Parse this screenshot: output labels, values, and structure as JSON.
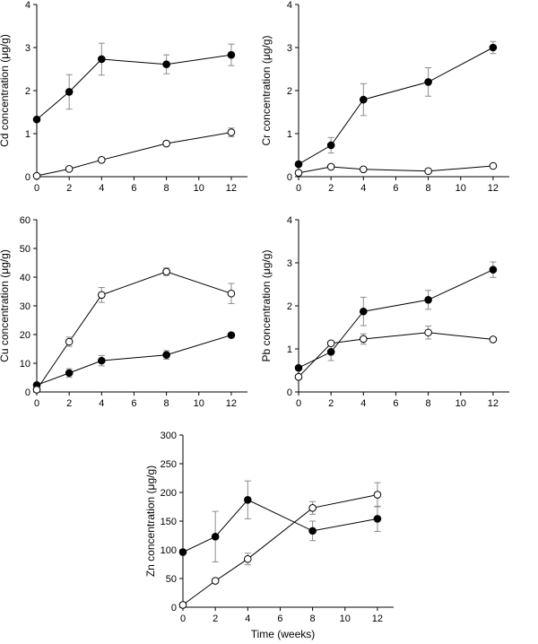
{
  "chart_data": [
    {
      "type": "line",
      "ylabel": "Cd concentration (μg/g)",
      "xlabel": "",
      "x": [
        0,
        2,
        4,
        8,
        12
      ],
      "xlim": [
        0,
        13
      ],
      "xticks": [
        "0",
        "2",
        "4",
        "6",
        "8",
        "10",
        "12"
      ],
      "ylim": [
        0,
        4
      ],
      "yticks": [
        "0",
        "1",
        "2",
        "3",
        "4"
      ],
      "series": [
        {
          "marker": "filled",
          "values": [
            1.33,
            1.97,
            2.73,
            2.61,
            2.83
          ],
          "errors": [
            0.0,
            0.4,
            0.37,
            0.22,
            0.25
          ]
        },
        {
          "marker": "open",
          "values": [
            0.02,
            0.18,
            0.39,
            0.77,
            1.03
          ],
          "errors": [
            0.0,
            0.0,
            0.0,
            0.0,
            0.1
          ]
        }
      ]
    },
    {
      "type": "line",
      "ylabel": "Cr concentration (μg/g)",
      "xlabel": "",
      "x": [
        0,
        2,
        4,
        8,
        12
      ],
      "xlim": [
        0,
        13
      ],
      "xticks": [
        "0",
        "2",
        "4",
        "6",
        "8",
        "10",
        "12"
      ],
      "ylim": [
        0,
        4
      ],
      "yticks": [
        "0",
        "1",
        "2",
        "3",
        "4"
      ],
      "series": [
        {
          "marker": "filled",
          "values": [
            0.29,
            0.73,
            1.79,
            2.2,
            3.0
          ],
          "errors": [
            0.0,
            0.18,
            0.37,
            0.33,
            0.14
          ]
        },
        {
          "marker": "open",
          "values": [
            0.09,
            0.23,
            0.17,
            0.13,
            0.25
          ],
          "errors": [
            0.0,
            0.0,
            0.0,
            0.0,
            0.0
          ]
        }
      ]
    },
    {
      "type": "line",
      "ylabel": "Cu concentration (μg/g)",
      "xlabel": "",
      "x": [
        0,
        2,
        4,
        8,
        12
      ],
      "xlim": [
        0,
        13
      ],
      "xticks": [
        "0",
        "2",
        "4",
        "6",
        "8",
        "10",
        "12"
      ],
      "ylim": [
        0,
        60
      ],
      "yticks": [
        "0",
        "10",
        "20",
        "30",
        "40",
        "50",
        "60"
      ],
      "series": [
        {
          "marker": "filled",
          "values": [
            2.4,
            6.6,
            10.9,
            12.9,
            19.8
          ],
          "errors": [
            0.0,
            1.5,
            1.8,
            1.5,
            0.0
          ]
        },
        {
          "marker": "open",
          "values": [
            0.8,
            17.5,
            33.8,
            41.9,
            34.3
          ],
          "errors": [
            0.0,
            1.6,
            2.6,
            1.3,
            3.5
          ]
        }
      ]
    },
    {
      "type": "line",
      "ylabel": "Pb concentration (μg/g)",
      "xlabel": "",
      "x": [
        0,
        2,
        4,
        8,
        12
      ],
      "xlim": [
        0,
        13
      ],
      "xticks": [
        "0",
        "2",
        "4",
        "6",
        "8",
        "10",
        "12"
      ],
      "ylim": [
        0,
        4
      ],
      "yticks": [
        "0",
        "1",
        "2",
        "3",
        "4"
      ],
      "series": [
        {
          "marker": "filled",
          "values": [
            0.56,
            0.93,
            1.87,
            2.14,
            2.84
          ],
          "errors": [
            0.0,
            0.2,
            0.33,
            0.22,
            0.18
          ]
        },
        {
          "marker": "open",
          "values": [
            0.35,
            1.13,
            1.23,
            1.38,
            1.22
          ],
          "errors": [
            0.0,
            0.0,
            0.12,
            0.15,
            0.0
          ]
        }
      ]
    },
    {
      "type": "line",
      "ylabel": "Zn concentration (μg/g)",
      "xlabel": "Time (weeks)",
      "x": [
        0,
        2,
        4,
        8,
        12
      ],
      "xlim": [
        0,
        13
      ],
      "xticks": [
        "0",
        "2",
        "4",
        "6",
        "8",
        "10",
        "12"
      ],
      "ylim": [
        0,
        300
      ],
      "yticks": [
        "0",
        "50",
        "100",
        "150",
        "200",
        "250",
        "300"
      ],
      "series": [
        {
          "marker": "filled",
          "values": [
            96,
            123,
            187,
            133,
            154
          ],
          "errors": [
            0,
            44,
            33,
            17,
            22
          ]
        },
        {
          "marker": "open",
          "values": [
            4,
            46,
            84,
            173,
            196
          ],
          "errors": [
            0,
            0,
            10,
            11,
            21
          ]
        }
      ]
    }
  ]
}
